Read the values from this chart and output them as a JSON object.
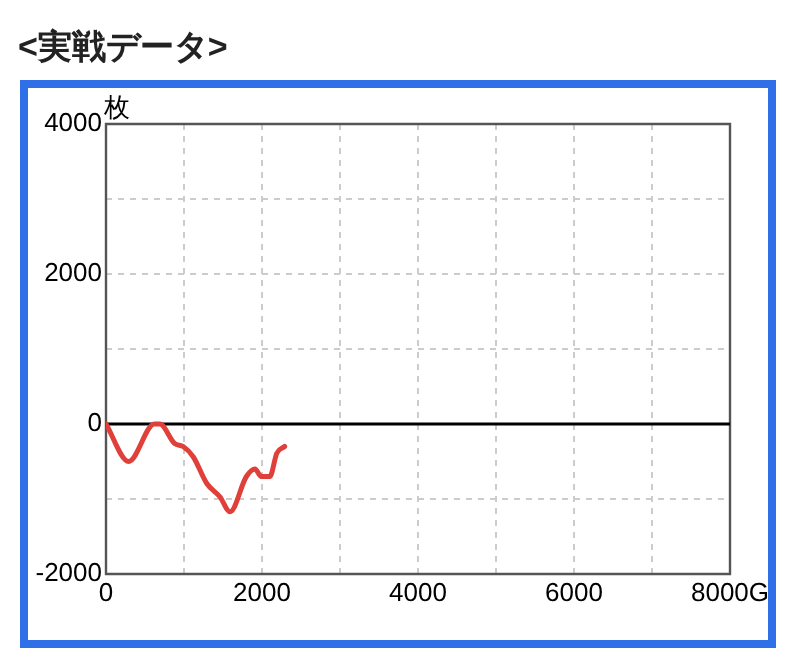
{
  "chart_data": {
    "type": "line",
    "title": "<実戦データ>",
    "ylabel": "枚",
    "x": [
      0,
      290,
      620,
      690,
      880,
      990,
      1120,
      1290,
      1460,
      1590,
      1800,
      1910,
      1990,
      2100,
      2190,
      2290
    ],
    "series": [
      {
        "color": "#e0403a",
        "values": [
          0,
          -500,
          0,
          0,
          -260,
          -300,
          -440,
          -790,
          -970,
          -1170,
          -700,
          -600,
          -700,
          -700,
          -390,
          -300
        ]
      }
    ],
    "xlim": [
      0,
      8000
    ],
    "xticks": [
      0,
      {
        "value": 1000,
        "label": null
      },
      2000,
      {
        "value": 3000,
        "label": null
      },
      4000,
      {
        "value": 5000,
        "label": null
      },
      6000,
      {
        "value": 7000,
        "label": null
      },
      {
        "value": 8000,
        "label": "8000G"
      }
    ],
    "ylim": [
      -2000,
      4000
    ],
    "yticks": [
      -2000,
      {
        "value": -1000,
        "label": null
      },
      0,
      {
        "value": 1000,
        "label": null
      },
      2000,
      {
        "value": 3000,
        "label": null
      },
      4000
    ],
    "grid": true,
    "legend": false,
    "marker": "none",
    "line_style": "solid",
    "ref_lines": [
      {
        "axis": "y",
        "value": 0,
        "color": "#000000"
      }
    ]
  }
}
